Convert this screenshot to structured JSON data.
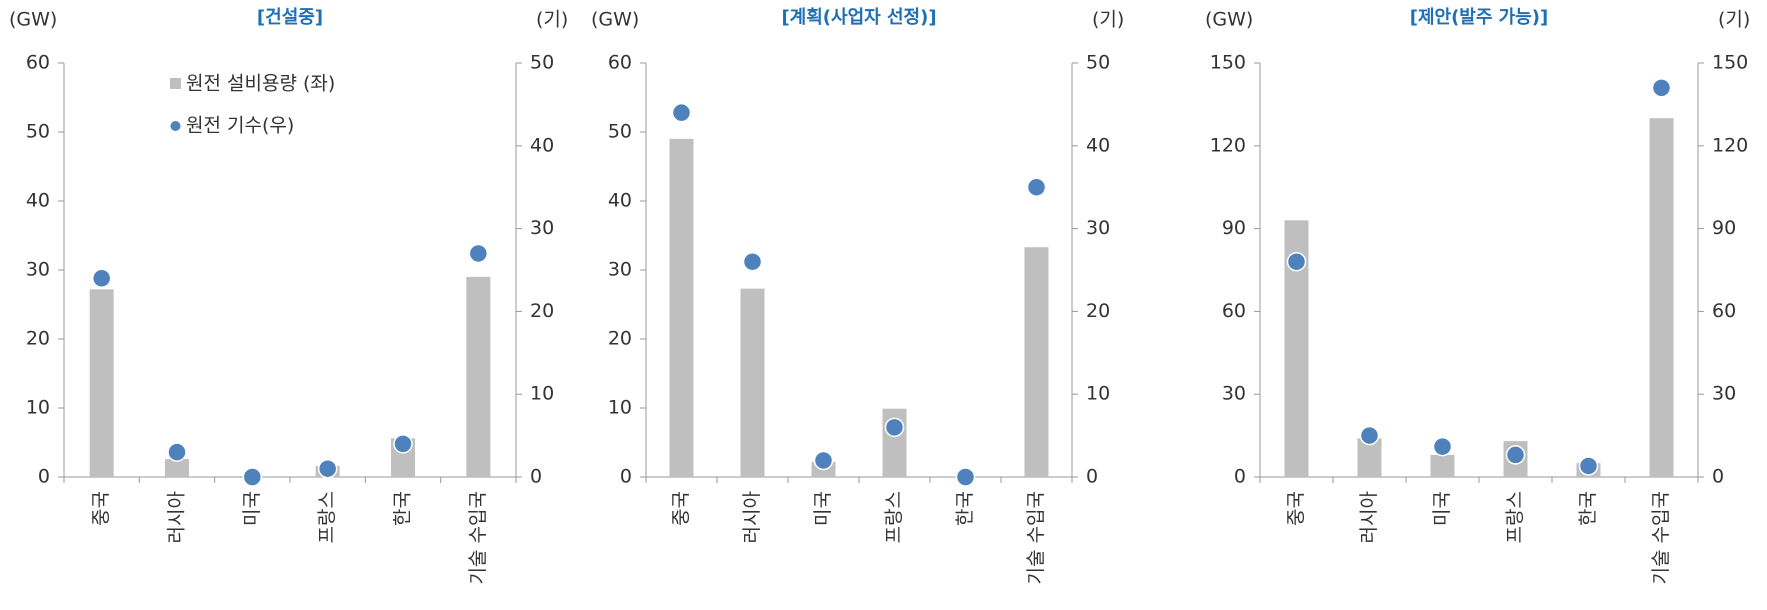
{
  "chart_data": [
    {
      "type": "bar_dot",
      "title": "[건설중]",
      "y_label": "(GW)",
      "y2_label": "(기)",
      "categories": [
        "중국",
        "러시아",
        "미국",
        "프랑스",
        "한국",
        "기술 수입국"
      ],
      "series": [
        {
          "name": "원전 설비용량 (좌)",
          "kind": "bar",
          "color": "#bfbfbf",
          "values": [
            27.2,
            2.6,
            0,
            1.6,
            5.6,
            29
          ]
        },
        {
          "name": "원전 기수(우)",
          "kind": "dot",
          "axis": "y2",
          "color": "#4f81bd",
          "values": [
            24,
            3,
            0,
            1,
            4,
            27
          ]
        }
      ],
      "ylim": [
        0,
        60
      ],
      "yticks": [
        0,
        10,
        20,
        30,
        40,
        50,
        60
      ],
      "y2lim": [
        0,
        50
      ],
      "y2ticks": [
        0,
        10,
        20,
        30,
        40,
        50
      ],
      "legend": true
    },
    {
      "type": "bar_dot",
      "title": "[계획(사업자 선정)]",
      "y_label": "(GW)",
      "y2_label": "(기)",
      "categories": [
        "중국",
        "러시아",
        "미국",
        "프랑스",
        "한국",
        "기술 수입국"
      ],
      "series": [
        {
          "name": "원전 설비용량 (좌)",
          "kind": "bar",
          "color": "#bfbfbf",
          "values": [
            49,
            27.3,
            2.2,
            9.9,
            0,
            33.3
          ]
        },
        {
          "name": "원전 기수(우)",
          "kind": "dot",
          "axis": "y2",
          "color": "#4f81bd",
          "values": [
            44,
            26,
            2,
            6,
            0,
            35
          ]
        }
      ],
      "ylim": [
        0,
        60
      ],
      "yticks": [
        0,
        10,
        20,
        30,
        40,
        50,
        60
      ],
      "y2lim": [
        0,
        50
      ],
      "y2ticks": [
        0,
        10,
        20,
        30,
        40,
        50
      ],
      "legend": false
    },
    {
      "type": "bar_dot",
      "title": "[제안(발주 가능)]",
      "y_label": "(GW)",
      "y2_label": "(기)",
      "categories": [
        "중국",
        "러시아",
        "미국",
        "프랑스",
        "한국",
        "기술 수입국"
      ],
      "series": [
        {
          "name": "원전 설비용량 (좌)",
          "kind": "bar",
          "color": "#bfbfbf",
          "values": [
            93,
            14,
            8,
            13,
            5,
            130
          ]
        },
        {
          "name": "원전 기수(우)",
          "kind": "dot",
          "axis": "y2",
          "color": "#4f81bd",
          "values": [
            78,
            15,
            11,
            8,
            4,
            141
          ]
        }
      ],
      "ylim": [
        0,
        150
      ],
      "yticks": [
        0,
        30,
        60,
        90,
        120,
        150
      ],
      "y2lim": [
        0,
        150
      ],
      "y2ticks": [
        0,
        30,
        60,
        90,
        120,
        150
      ],
      "legend": false
    }
  ]
}
